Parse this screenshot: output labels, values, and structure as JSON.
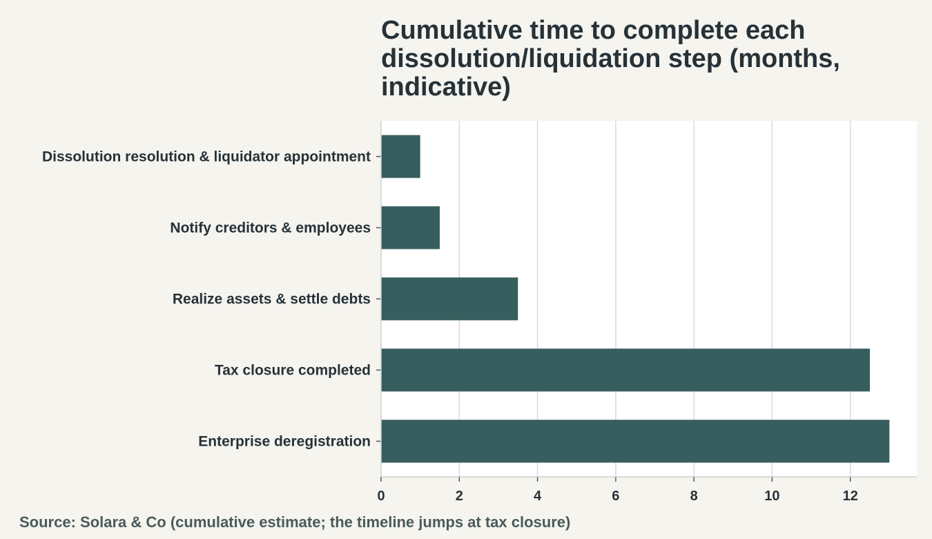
{
  "chart_data": {
    "type": "bar",
    "orientation": "horizontal",
    "title": "Cumulative time to complete each dissolution/liquidation step (months, indicative)",
    "title_lines": [
      "Cumulative time to complete each",
      "dissolution/liquidation step (months,",
      "indicative)"
    ],
    "categories": [
      "Dissolution resolution & liquidator appointment",
      "Notify creditors & employees",
      "Realize assets & settle debts",
      "Tax closure completed",
      "Enterprise deregistration"
    ],
    "values": [
      1,
      1.5,
      3.5,
      12.5,
      13
    ],
    "xlim": [
      0,
      13.7
    ],
    "x_ticks": [
      0,
      2,
      4,
      6,
      8,
      10,
      12
    ],
    "xlabel": "",
    "ylabel": "",
    "grid": true,
    "legend": "none",
    "source": "Source: Solara & Co (cumulative estimate; the timeline jumps at tax closure)",
    "colors": {
      "bar": "#375e5e",
      "plot_background": "#ffffff",
      "page_background": "#f5f4ef",
      "grid": "#d9d9d9",
      "text": "#263238",
      "source_text": "#4a5a5a"
    }
  }
}
